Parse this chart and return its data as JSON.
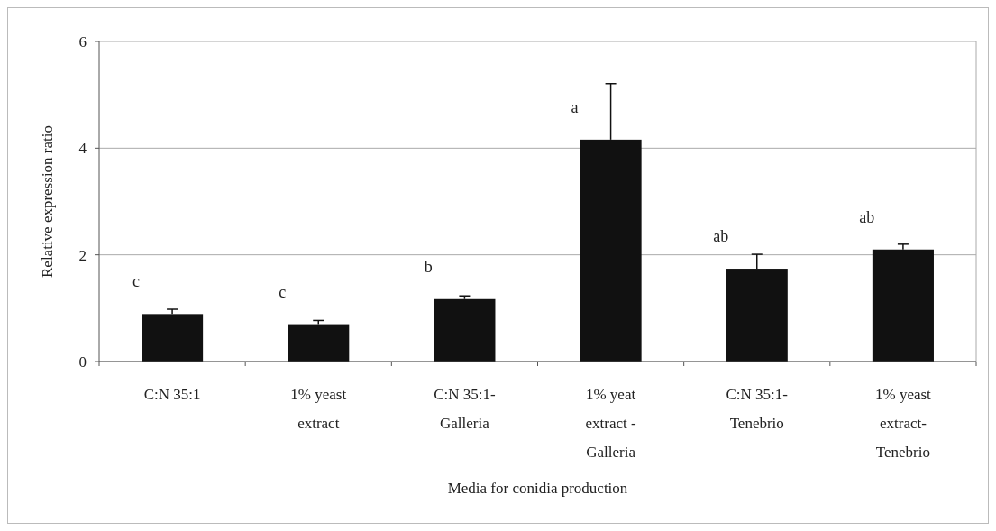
{
  "chart_data": {
    "type": "bar",
    "xlabel": "Media for conidia production",
    "ylabel": "Relative expression ratio",
    "categories": [
      "C:N 35:1",
      "1% yeast\nextract",
      "C:N 35:1-\nGalleria",
      "1% yeat\nextract -\nGalleria",
      "C:N 35:1-\nTenebrio",
      "1% yeast\nextract-\nTenebrio"
    ],
    "values": [
      0.89,
      0.7,
      1.17,
      4.16,
      1.74,
      2.1
    ],
    "errors": [
      [
        0.89,
        0.98
      ],
      [
        0.7,
        0.77
      ],
      [
        1.17,
        1.23
      ],
      [
        4.16,
        5.21
      ],
      [
        1.74,
        2.01
      ],
      [
        2.1,
        2.2
      ]
    ],
    "color": "#111111",
    "ylim": [
      0,
      6
    ],
    "yticks": [
      0,
      2,
      4,
      6
    ],
    "grid": "y",
    "annotations": [
      {
        "text": "c",
        "x": "C:N 35:1",
        "y": 0.89
      },
      {
        "text": "c",
        "x": "1% yeast\nextract",
        "y": 0.7
      },
      {
        "text": "b",
        "x": "C:N 35:1-\nGalleria",
        "y": 1.17
      },
      {
        "text": "a",
        "x": "1% yeat\nextract -\nGalleria",
        "y": 4.16
      },
      {
        "text": "ab",
        "x": "C:N 35:1-\nTenebrio",
        "y": 1.74
      },
      {
        "text": "ab",
        "x": "1% yeast\nextract-\nTenebrio",
        "y": 2.1
      }
    ]
  }
}
